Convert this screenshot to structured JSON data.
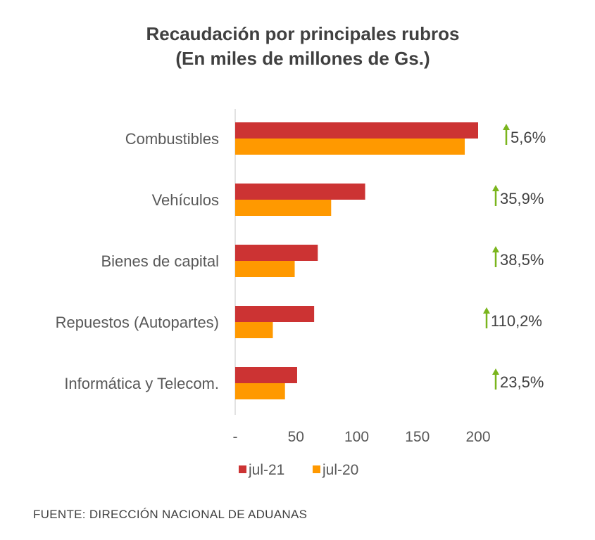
{
  "chart_data": {
    "type": "bar",
    "orientation": "horizontal",
    "title": "Recaudación por principales rubros",
    "subtitle": "(En miles de millones de Gs.)",
    "categories": [
      "Combustibles",
      "Vehículos",
      "Bienes de capital",
      "Repuestos (Autopartes)",
      "Informática y Telecom."
    ],
    "series": [
      {
        "name": "jul-21",
        "color": "#cc3333",
        "values": [
          200,
          107,
          68,
          65,
          51
        ]
      },
      {
        "name": "jul-20",
        "color": "#ff9900",
        "values": [
          189,
          79,
          49,
          31,
          41
        ]
      }
    ],
    "growth_labels": [
      "5,6%",
      "35,9%",
      "38,5%",
      "110,2%",
      "23,5%"
    ],
    "growth_icon": "up-arrow-icon",
    "growth_color": "#7ab51d",
    "xlim": [
      0,
      200
    ],
    "xticks": [
      "-",
      "50",
      "100",
      "150",
      "200"
    ],
    "grid": false,
    "legend": "bottom"
  },
  "source": "FUENTE: DIRECCIÓN NACIONAL DE ADUANAS"
}
